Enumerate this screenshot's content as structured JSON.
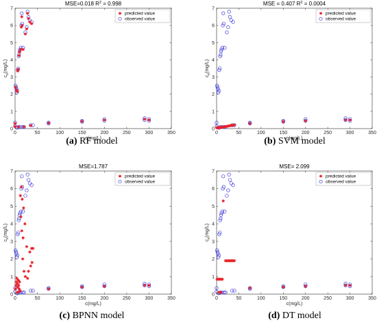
{
  "chart_data": [
    {
      "type": "scatter",
      "title": "MSE=0.018 R",
      "title_sup": "2",
      "title_suffix": " = 0.998",
      "caption_label": "(a)",
      "caption_text": " RF model",
      "xlabel": "c(mg/L)",
      "ylabel_main": "c",
      "ylabel_sub": "e",
      "ylabel_unit": "(mg/L)",
      "xlim": [
        0,
        350
      ],
      "ylim": [
        0,
        7
      ],
      "xticks": [
        "0",
        "50",
        "100",
        "150",
        "200",
        "250",
        "300",
        "350"
      ],
      "yticks": [
        "0",
        "1",
        "2",
        "3",
        "4",
        "5",
        "6",
        "7"
      ],
      "legend": [
        "predicted value",
        "observed value"
      ],
      "legend_position": "top-right",
      "observed": [
        [
          0,
          0.35
        ],
        [
          0,
          0.15
        ],
        [
          1,
          2.5
        ],
        [
          2,
          2.4
        ],
        [
          3,
          2.3
        ],
        [
          4,
          2.1
        ],
        [
          5,
          2.2
        ],
        [
          5,
          0.05
        ],
        [
          6,
          3.4
        ],
        [
          7,
          3.5
        ],
        [
          8,
          0.1
        ],
        [
          8,
          4.2
        ],
        [
          9,
          4.3
        ],
        [
          10,
          4.5
        ],
        [
          11,
          4.6
        ],
        [
          12,
          0.1
        ],
        [
          13,
          4.7
        ],
        [
          14,
          6.0
        ],
        [
          15,
          6.7
        ],
        [
          16,
          6.1
        ],
        [
          17,
          0.1
        ],
        [
          18,
          4.7
        ],
        [
          20,
          0.1
        ],
        [
          23,
          5.6
        ],
        [
          26,
          5.9
        ],
        [
          28,
          6.8
        ],
        [
          30,
          6.5
        ],
        [
          33,
          6.3
        ],
        [
          35,
          0.2
        ],
        [
          37,
          6.2
        ],
        [
          40,
          0.2
        ],
        [
          75,
          0.35
        ],
        [
          75,
          0.3
        ],
        [
          150,
          0.45
        ],
        [
          150,
          0.4
        ],
        [
          200,
          0.55
        ],
        [
          200,
          0.45
        ],
        [
          290,
          0.6
        ],
        [
          290,
          0.5
        ],
        [
          300,
          0.55
        ],
        [
          300,
          0.45
        ]
      ],
      "predicted": [
        [
          0,
          0.3
        ],
        [
          0,
          0.12
        ],
        [
          1,
          2.4
        ],
        [
          3,
          2.25
        ],
        [
          5,
          2.15
        ],
        [
          6,
          3.35
        ],
        [
          7,
          3.45
        ],
        [
          9,
          4.25
        ],
        [
          10,
          4.45
        ],
        [
          12,
          4.6
        ],
        [
          14,
          5.9
        ],
        [
          15,
          6.5
        ],
        [
          16,
          6.0
        ],
        [
          18,
          4.6
        ],
        [
          23,
          5.5
        ],
        [
          26,
          5.8
        ],
        [
          28,
          6.7
        ],
        [
          30,
          6.4
        ],
        [
          33,
          6.2
        ],
        [
          37,
          6.1
        ],
        [
          8,
          0.1
        ],
        [
          20,
          0.1
        ],
        [
          35,
          0.18
        ],
        [
          75,
          0.32
        ],
        [
          150,
          0.42
        ],
        [
          200,
          0.5
        ],
        [
          290,
          0.55
        ],
        [
          300,
          0.5
        ]
      ]
    },
    {
      "type": "scatter",
      "title": "MSE = 0.407 R",
      "title_sup": "2",
      "title_suffix": " = 0.0004",
      "caption_label": "(b)",
      "caption_text": " SVM model",
      "xlabel": "c(mg/L)",
      "ylabel_main": "c",
      "ylabel_sub": "e",
      "ylabel_unit": "(mg/L)",
      "xlim": [
        0,
        350
      ],
      "ylim": [
        0,
        7
      ],
      "xticks": [
        "0",
        "50",
        "100",
        "150",
        "200",
        "250",
        "300",
        "350"
      ],
      "yticks": [
        "0",
        "1",
        "2",
        "3",
        "4",
        "5",
        "6",
        "7"
      ],
      "legend": [
        "predicted value",
        "observed value"
      ],
      "legend_position": "top-right",
      "observed": [
        [
          0,
          0.35
        ],
        [
          0,
          0.15
        ],
        [
          1,
          2.5
        ],
        [
          2,
          2.4
        ],
        [
          3,
          2.3
        ],
        [
          4,
          2.1
        ],
        [
          5,
          2.2
        ],
        [
          5,
          0.05
        ],
        [
          6,
          3.4
        ],
        [
          7,
          3.5
        ],
        [
          8,
          0.1
        ],
        [
          8,
          4.2
        ],
        [
          9,
          4.3
        ],
        [
          10,
          4.5
        ],
        [
          11,
          4.6
        ],
        [
          12,
          0.1
        ],
        [
          13,
          4.7
        ],
        [
          14,
          6.0
        ],
        [
          15,
          6.7
        ],
        [
          16,
          6.1
        ],
        [
          17,
          0.1
        ],
        [
          18,
          4.7
        ],
        [
          20,
          0.1
        ],
        [
          23,
          5.6
        ],
        [
          26,
          5.9
        ],
        [
          28,
          6.8
        ],
        [
          30,
          6.5
        ],
        [
          33,
          6.3
        ],
        [
          35,
          0.2
        ],
        [
          37,
          6.2
        ],
        [
          40,
          0.2
        ],
        [
          75,
          0.35
        ],
        [
          75,
          0.3
        ],
        [
          150,
          0.45
        ],
        [
          150,
          0.4
        ],
        [
          200,
          0.55
        ],
        [
          200,
          0.45
        ],
        [
          290,
          0.6
        ],
        [
          290,
          0.5
        ],
        [
          300,
          0.55
        ],
        [
          300,
          0.45
        ]
      ],
      "predicted": [
        [
          0,
          0.05
        ],
        [
          2,
          0.05
        ],
        [
          4,
          0.05
        ],
        [
          6,
          0.06
        ],
        [
          8,
          0.06
        ],
        [
          10,
          0.07
        ],
        [
          12,
          0.08
        ],
        [
          14,
          0.09
        ],
        [
          16,
          0.1
        ],
        [
          18,
          0.11
        ],
        [
          20,
          0.12
        ],
        [
          23,
          0.13
        ],
        [
          26,
          0.15
        ],
        [
          28,
          0.16
        ],
        [
          30,
          0.17
        ],
        [
          33,
          0.18
        ],
        [
          35,
          0.19
        ],
        [
          37,
          0.2
        ],
        [
          40,
          0.22
        ],
        [
          75,
          0.3
        ],
        [
          150,
          0.4
        ],
        [
          200,
          0.45
        ],
        [
          290,
          0.5
        ],
        [
          300,
          0.5
        ]
      ]
    },
    {
      "type": "scatter",
      "title": "MSE=1.787",
      "title_sup": "",
      "title_suffix": "",
      "caption_label": "(c)",
      "caption_text": " BPNN model",
      "xlabel": "c(mg/L)",
      "ylabel_main": "c",
      "ylabel_sub": "e",
      "ylabel_unit": "(mg/L)",
      "xlim": [
        0,
        350
      ],
      "ylim": [
        0,
        7
      ],
      "xticks": [
        "0",
        "50",
        "100",
        "150",
        "200",
        "250",
        "300",
        "350"
      ],
      "yticks": [
        "0",
        "1",
        "2",
        "3",
        "4",
        "5",
        "6",
        "7"
      ],
      "legend": [
        "predicted value",
        "observed value"
      ],
      "legend_position": "top-right",
      "observed": [
        [
          0,
          0.35
        ],
        [
          0,
          0.15
        ],
        [
          1,
          2.5
        ],
        [
          2,
          2.4
        ],
        [
          3,
          2.3
        ],
        [
          4,
          2.1
        ],
        [
          5,
          2.2
        ],
        [
          5,
          0.05
        ],
        [
          6,
          3.4
        ],
        [
          7,
          3.5
        ],
        [
          8,
          0.1
        ],
        [
          8,
          4.2
        ],
        [
          9,
          4.3
        ],
        [
          10,
          4.5
        ],
        [
          11,
          4.6
        ],
        [
          12,
          0.1
        ],
        [
          13,
          4.7
        ],
        [
          14,
          6.0
        ],
        [
          15,
          6.7
        ],
        [
          16,
          6.1
        ],
        [
          17,
          0.1
        ],
        [
          18,
          4.7
        ],
        [
          20,
          0.1
        ],
        [
          23,
          5.6
        ],
        [
          26,
          5.9
        ],
        [
          28,
          6.8
        ],
        [
          30,
          6.5
        ],
        [
          33,
          6.3
        ],
        [
          35,
          0.2
        ],
        [
          37,
          6.2
        ],
        [
          40,
          0.2
        ],
        [
          75,
          0.35
        ],
        [
          75,
          0.3
        ],
        [
          150,
          0.45
        ],
        [
          150,
          0.4
        ],
        [
          200,
          0.55
        ],
        [
          200,
          0.45
        ],
        [
          290,
          0.6
        ],
        [
          290,
          0.5
        ],
        [
          300,
          0.55
        ],
        [
          300,
          0.45
        ]
      ],
      "predicted": [
        [
          1,
          0.3
        ],
        [
          2,
          0.5
        ],
        [
          3,
          0.7
        ],
        [
          4,
          0.9
        ],
        [
          5,
          0.6
        ],
        [
          6,
          0.4
        ],
        [
          7,
          0.8
        ],
        [
          8,
          0.5
        ],
        [
          9,
          0.3
        ],
        [
          10,
          0.7
        ],
        [
          11,
          0.2
        ],
        [
          12,
          5.6
        ],
        [
          13,
          4.4
        ],
        [
          14,
          6.1
        ],
        [
          15,
          3.6
        ],
        [
          16,
          5.4
        ],
        [
          17,
          2.0
        ],
        [
          18,
          3.2
        ],
        [
          19,
          4.9
        ],
        [
          20,
          1.3
        ],
        [
          22,
          4.0
        ],
        [
          23,
          1.0
        ],
        [
          26,
          2.7
        ],
        [
          28,
          0.9
        ],
        [
          30,
          1.3
        ],
        [
          33,
          2.4
        ],
        [
          35,
          1.6
        ],
        [
          37,
          2.6
        ],
        [
          38,
          1.8
        ],
        [
          40,
          2.6
        ],
        [
          5,
          0.1
        ],
        [
          10,
          0.15
        ],
        [
          75,
          0.3
        ],
        [
          150,
          0.4
        ],
        [
          200,
          0.45
        ],
        [
          290,
          0.5
        ],
        [
          300,
          0.5
        ]
      ]
    },
    {
      "type": "scatter",
      "title": "MSE= 2.099",
      "title_sup": "",
      "title_suffix": "",
      "caption_label": "(d)",
      "caption_text": " DT model",
      "xlabel": "c(mg/L)",
      "ylabel_main": "c",
      "ylabel_sub": "e",
      "ylabel_unit": "(mg/L)",
      "xlim": [
        0,
        350
      ],
      "ylim": [
        0,
        7
      ],
      "xticks": [
        "0",
        "50",
        "100",
        "150",
        "200",
        "250",
        "300",
        "350"
      ],
      "yticks": [
        "0",
        "1",
        "2",
        "3",
        "4",
        "5",
        "6",
        "7"
      ],
      "legend": [
        "predicted value",
        "observed value"
      ],
      "legend_position": "top-right",
      "observed": [
        [
          0,
          0.35
        ],
        [
          0,
          0.15
        ],
        [
          1,
          2.5
        ],
        [
          2,
          2.4
        ],
        [
          3,
          2.3
        ],
        [
          4,
          2.1
        ],
        [
          5,
          2.2
        ],
        [
          5,
          0.05
        ],
        [
          6,
          3.4
        ],
        [
          7,
          3.5
        ],
        [
          8,
          0.1
        ],
        [
          8,
          4.2
        ],
        [
          9,
          4.3
        ],
        [
          10,
          4.5
        ],
        [
          11,
          4.6
        ],
        [
          12,
          0.1
        ],
        [
          13,
          4.7
        ],
        [
          14,
          6.0
        ],
        [
          15,
          6.7
        ],
        [
          16,
          6.1
        ],
        [
          17,
          0.1
        ],
        [
          18,
          4.7
        ],
        [
          20,
          0.1
        ],
        [
          23,
          5.6
        ],
        [
          26,
          5.9
        ],
        [
          28,
          6.8
        ],
        [
          30,
          6.5
        ],
        [
          33,
          6.3
        ],
        [
          35,
          0.2
        ],
        [
          37,
          6.2
        ],
        [
          40,
          0.2
        ],
        [
          75,
          0.35
        ],
        [
          75,
          0.3
        ],
        [
          150,
          0.45
        ],
        [
          150,
          0.4
        ],
        [
          200,
          0.55
        ],
        [
          200,
          0.45
        ],
        [
          290,
          0.6
        ],
        [
          290,
          0.5
        ],
        [
          300,
          0.55
        ],
        [
          300,
          0.45
        ]
      ],
      "predicted": [
        [
          1,
          0.85
        ],
        [
          3,
          0.85
        ],
        [
          5,
          0.85
        ],
        [
          7,
          0.85
        ],
        [
          9,
          0.85
        ],
        [
          11,
          0.85
        ],
        [
          13,
          0.85
        ],
        [
          15,
          5.3
        ],
        [
          20,
          1.9
        ],
        [
          23,
          1.9
        ],
        [
          26,
          1.9
        ],
        [
          28,
          1.9
        ],
        [
          30,
          1.9
        ],
        [
          33,
          1.9
        ],
        [
          35,
          1.9
        ],
        [
          37,
          1.9
        ],
        [
          40,
          1.9
        ],
        [
          5,
          0.1
        ],
        [
          10,
          0.1
        ],
        [
          75,
          0.35
        ],
        [
          150,
          0.4
        ],
        [
          200,
          0.45
        ],
        [
          290,
          0.5
        ],
        [
          300,
          0.5
        ]
      ]
    }
  ],
  "colors": {
    "observed": "#3b3bd6",
    "predicted": "#e8202a",
    "axis": "#262626"
  }
}
